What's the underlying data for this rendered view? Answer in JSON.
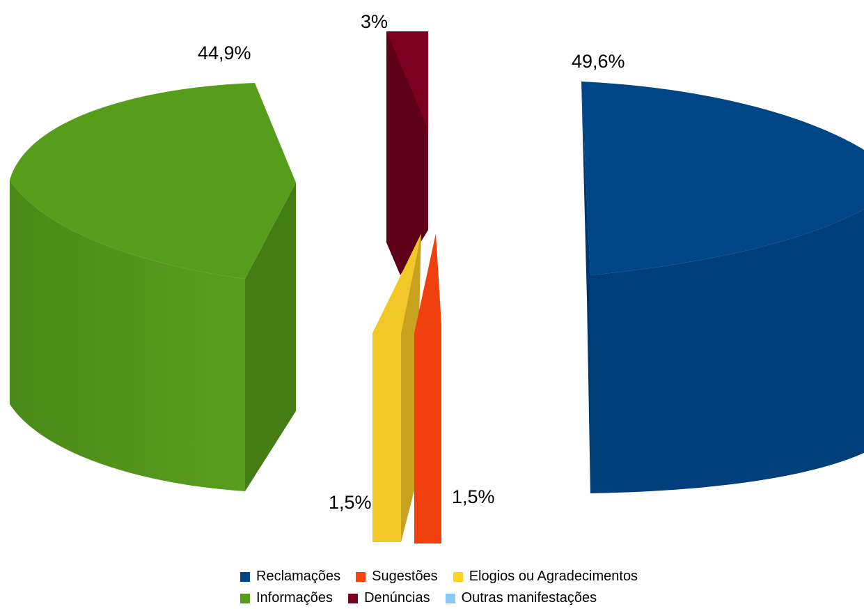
{
  "chart_data": {
    "type": "pie",
    "style": "3d-exploded",
    "categories": [
      "Reclamações",
      "Informações",
      "Sugestões",
      "Denúncias",
      "Elogios ou Agradecimentos",
      "Outras manifestações"
    ],
    "values": [
      49.6,
      44.9,
      1.5,
      3,
      1.5,
      0
    ],
    "value_labels": [
      "49,6%",
      "44,9%",
      "1,5%",
      "3%",
      "1,5%",
      ""
    ],
    "colors": [
      "#004586",
      "#579d1c",
      "#ff420e",
      "#7e0021",
      "#ffd320",
      "#83caff"
    ],
    "legend_position": "bottom",
    "legend_rows": [
      [
        "Reclamações",
        "Sugestões",
        "Elogios ou Agradecimentos"
      ],
      [
        "Informações",
        "Denúncias",
        "Outras manifestações"
      ]
    ]
  }
}
